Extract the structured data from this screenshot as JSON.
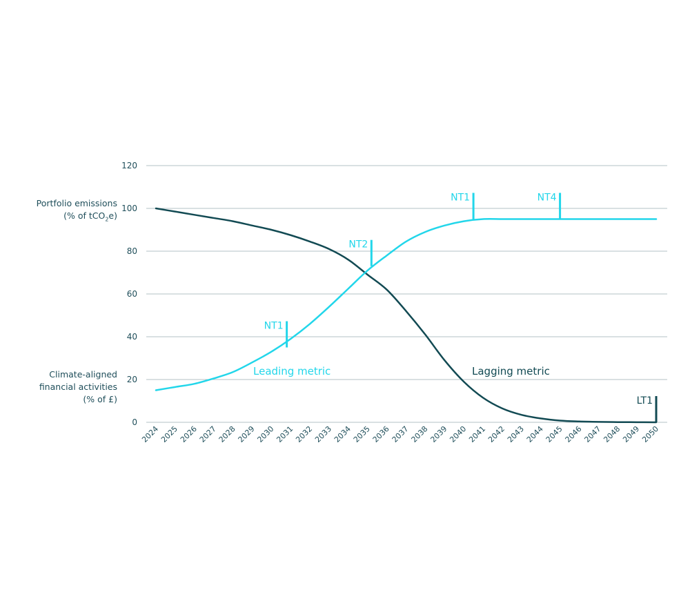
{
  "chart_data": {
    "type": "line",
    "x": [
      2024,
      2025,
      2026,
      2027,
      2028,
      2029,
      2030,
      2031,
      2032,
      2033,
      2034,
      2035,
      2036,
      2037,
      2038,
      2039,
      2040,
      2041,
      2042,
      2043,
      2044,
      2045,
      2046,
      2047,
      2048,
      2049,
      2050
    ],
    "x_tick_labels": [
      "2024",
      "2025",
      "2026",
      "2027",
      "2028",
      "2029",
      "2030",
      "2031",
      "2032",
      "2033",
      "2034",
      "2035",
      "2036",
      "2037",
      "2038",
      "2039",
      "2040",
      "2041",
      "2042",
      "2043",
      "2044",
      "2045",
      "2046",
      "2047",
      "2048",
      "2049",
      "2050"
    ],
    "ylim": [
      0,
      120
    ],
    "y_ticks": [
      0,
      20,
      40,
      60,
      80,
      100,
      120
    ],
    "y_tick_labels": [
      "0",
      "20",
      "40",
      "60",
      "80",
      "100",
      "120"
    ],
    "grid": true,
    "ylabel_top": {
      "line1": "Portfolio emissions",
      "line2_prefix": "(% of tCO",
      "line2_sub": "2",
      "line2_suffix": "e)"
    },
    "ylabel_bottom": {
      "line1": "Climate-aligned",
      "line2": "financial activities",
      "line3": "(% of £)"
    },
    "series": [
      {
        "name": "Lagging metric",
        "color": "#124a53",
        "values": [
          100,
          98.5,
          97,
          95.5,
          94,
          92,
          90,
          87.5,
          84.5,
          81,
          76,
          69,
          62,
          52,
          41,
          29,
          19,
          11.5,
          6.5,
          3.5,
          1.8,
          0.8,
          0.4,
          0.2,
          0.1,
          0.05,
          0
        ]
      },
      {
        "name": "Leading metric",
        "color": "#22d6ea",
        "values": [
          15,
          16.5,
          18,
          20.5,
          23.5,
          28,
          33,
          39,
          46,
          54,
          62.5,
          71,
          78,
          84.5,
          89,
          92,
          94,
          95,
          95,
          95,
          95,
          95,
          95,
          95,
          95,
          95,
          95
        ]
      }
    ],
    "markers": [
      {
        "label": "NT1",
        "x": 2030.8,
        "y": 35,
        "color": "#22d6ea"
      },
      {
        "label": "NT2",
        "x": 2035.2,
        "y": 73,
        "color": "#22d6ea"
      },
      {
        "label": "NT1",
        "x": 2040.5,
        "y": 95,
        "color": "#22d6ea"
      },
      {
        "label": "NT4",
        "x": 2045.0,
        "y": 95,
        "color": "#22d6ea"
      },
      {
        "label": "LT1",
        "x": 2050.0,
        "y": 0,
        "color": "#124a53"
      }
    ],
    "colors": {
      "grid": "#b3c2c6",
      "tick_text": "#1f4e5a"
    }
  }
}
